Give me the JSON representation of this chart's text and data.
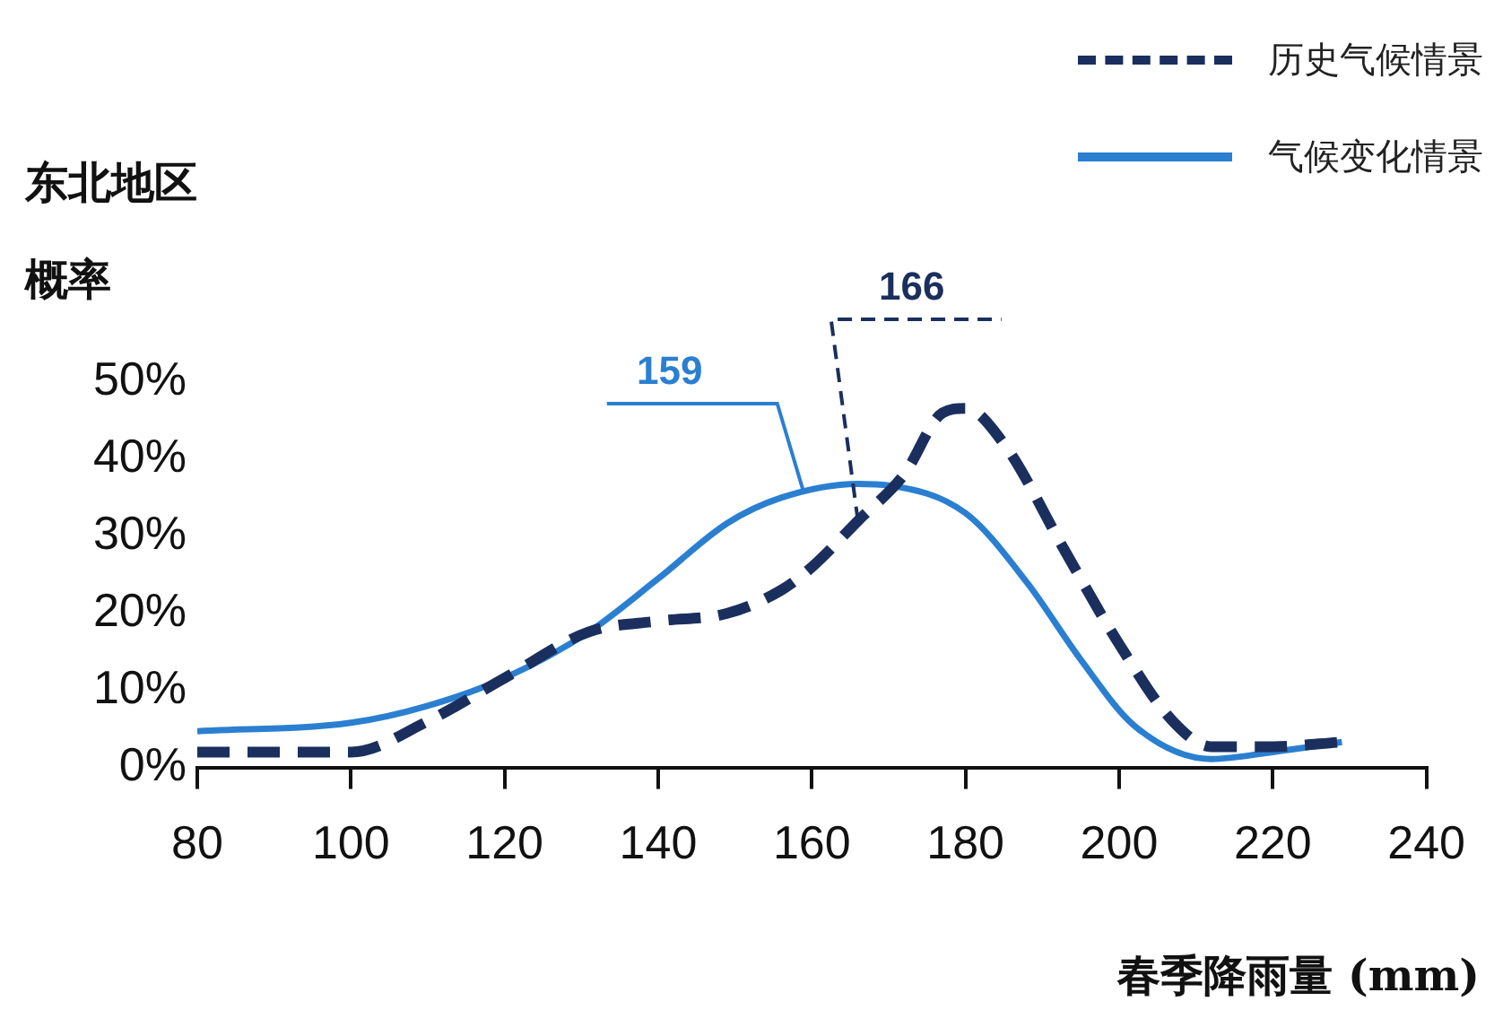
{
  "chart_data": {
    "type": "line",
    "title": "东北地区",
    "ylabel": "概率",
    "xlabel": "春季降雨量 (mm)",
    "xlim": [
      80,
      240
    ],
    "xticks": [
      80,
      100,
      120,
      140,
      160,
      180,
      200,
      220,
      240
    ],
    "ylim": [
      0,
      50
    ],
    "yticks": [
      {
        "value": 0,
        "label": "0%"
      },
      {
        "value": 10,
        "label": "10%"
      },
      {
        "value": 20,
        "label": "20%"
      },
      {
        "value": 30,
        "label": "30%"
      },
      {
        "value": 40,
        "label": "40%"
      },
      {
        "value": 50,
        "label": "50%"
      }
    ],
    "grid": false,
    "legend": "top right",
    "marker": "none",
    "series": [
      {
        "name": "历史气候情景",
        "color": "#1b2f5e",
        "line_style": "dashed",
        "x": [
          80,
          100,
          110,
          120,
          131,
          140,
          149,
          156,
          160,
          166,
          172,
          177,
          180,
          185,
          193,
          200,
          207,
          212,
          220,
          229
        ],
        "values": [
          2,
          2,
          6,
          11.6,
          17.6,
          19,
          20,
          23,
          26,
          32,
          38,
          46,
          46.6,
          42,
          28,
          16,
          6,
          2.7,
          2.7,
          3.3
        ]
      },
      {
        "name": "气候变化情景",
        "color": "#2b7fd0",
        "line_style": "solid",
        "x": [
          80,
          100,
          110,
          120,
          131,
          140,
          149,
          156,
          166,
          170,
          180,
          188,
          195,
          202,
          212,
          220,
          229
        ],
        "values": [
          4.7,
          5.8,
          8,
          11.6,
          17.6,
          24.5,
          31.7,
          35,
          36.8,
          36.6,
          33,
          24,
          14,
          5.4,
          1.1,
          2,
          3.3
        ]
      }
    ],
    "annotations": [
      {
        "text": "159",
        "x": 159,
        "y": 35.5
      },
      {
        "text": "166",
        "x": 166,
        "y": 32
      }
    ]
  }
}
